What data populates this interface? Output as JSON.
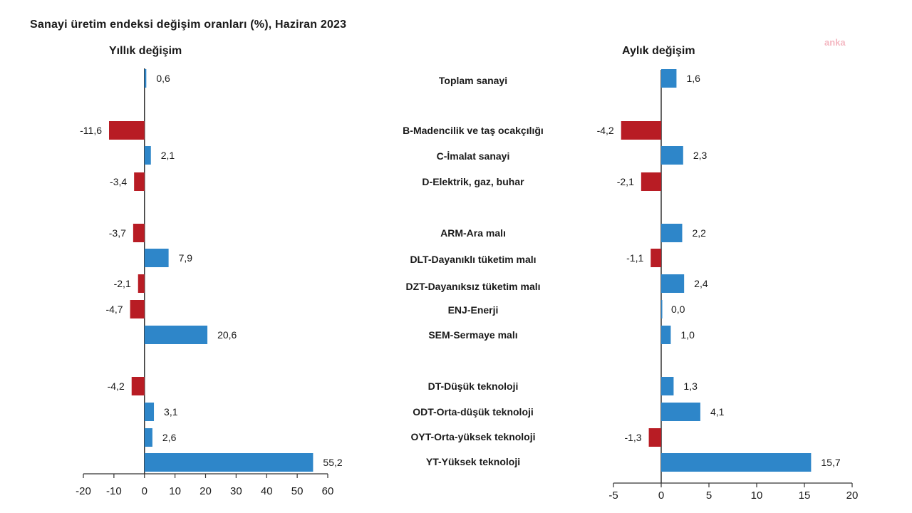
{
  "title": "Sanayi üretim endeksi değişim oranları (%), Haziran 2023",
  "watermark": "anka",
  "colors": {
    "positive": "#2e86c9",
    "negative": "#b81c24",
    "axis": "#333333"
  },
  "categories": [
    "Toplam sanayi",
    "B-Madencilik ve taş ocakçılığı",
    "C-İmalat sanayi",
    "D-Elektrik, gaz, buhar",
    "ARM-Ara malı",
    "DLT-Dayanıklı tüketim malı",
    "DZT-Dayanıksız tüketim malı",
    "ENJ-Enerji",
    "SEM-Sermaye malı",
    "DT-Düşük teknoloji",
    "ODT-Orta-düşük teknoloji",
    "OYT-Orta-yüksek teknoloji",
    "YT-Yüksek teknoloji"
  ],
  "chart_data": [
    {
      "type": "bar",
      "orientation": "horizontal",
      "title": "Yıllık değişim",
      "xlim": [
        -20,
        60
      ],
      "xticks": [
        "-20",
        "-10",
        "0",
        "10",
        "20",
        "30",
        "40",
        "50",
        "60"
      ],
      "categories": [
        "Toplam sanayi",
        "B-Madencilik ve taş ocakçılığı",
        "C-İmalat sanayi",
        "D-Elektrik, gaz, buhar",
        "ARM-Ara malı",
        "DLT-Dayanıklı tüketim malı",
        "DZT-Dayanıksız tüketim malı",
        "ENJ-Enerji",
        "SEM-Sermaye malı",
        "DT-Düşük teknoloji",
        "ODT-Orta-düşük teknoloji",
        "OYT-Orta-yüksek teknoloji",
        "YT-Yüksek teknoloji"
      ],
      "values": [
        0.6,
        -11.6,
        2.1,
        -3.4,
        -3.7,
        7.9,
        -2.1,
        -4.7,
        20.6,
        -4.2,
        3.1,
        2.6,
        55.2
      ],
      "labels": [
        "0,6",
        "-11,6",
        "2,1",
        "-3,4",
        "-3,7",
        "7,9",
        "-2,1",
        "-4,7",
        "20,6",
        "-4,2",
        "3,1",
        "2,6",
        "55,2"
      ]
    },
    {
      "type": "bar",
      "orientation": "horizontal",
      "title": "Aylık değişim",
      "xlim": [
        -5,
        20
      ],
      "xticks": [
        "-5",
        "0",
        "5",
        "10",
        "15",
        "20"
      ],
      "categories": [
        "Toplam sanayi",
        "B-Madencilik ve taş ocakçılığı",
        "C-İmalat sanayi",
        "D-Elektrik, gaz, buhar",
        "ARM-Ara malı",
        "DLT-Dayanıklı tüketim malı",
        "DZT-Dayanıksız tüketim malı",
        "ENJ-Enerji",
        "SEM-Sermaye malı",
        "DT-Düşük teknoloji",
        "ODT-Orta-düşük teknoloji",
        "OYT-Orta-yüksek teknoloji",
        "YT-Yüksek teknoloji"
      ],
      "values": [
        1.6,
        -4.2,
        2.3,
        -2.1,
        2.2,
        -1.1,
        2.4,
        0.0,
        1.0,
        1.3,
        4.1,
        -1.3,
        15.7
      ],
      "labels": [
        "1,6",
        "-4,2",
        "2,3",
        "-2,1",
        "2,2",
        "-1,1",
        "2,4",
        "0,0",
        "1,0",
        "1,3",
        "4,1",
        "-1,3",
        "15,7"
      ]
    }
  ]
}
